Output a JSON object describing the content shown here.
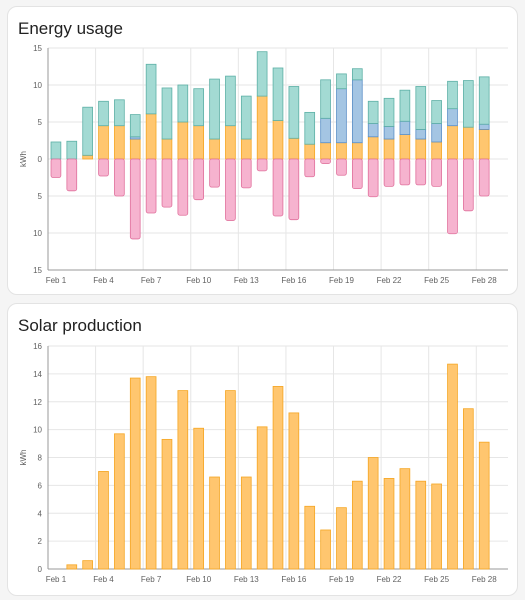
{
  "cards": [
    {
      "title": "Energy usage"
    },
    {
      "title": "Solar production"
    }
  ],
  "colors": {
    "solar": "#ffc66f",
    "solar_stroke": "#f5a623",
    "grid_in": "#a3dad3",
    "grid_in_stroke": "#5db0a6",
    "battery": "#a4c5e3",
    "battery_stroke": "#5b8fc7",
    "grid_out": "#f6b3cf",
    "grid_out_stroke": "#e0709c",
    "gridline": "#e6e6e6",
    "axis": "#999999"
  },
  "chart_data": [
    {
      "type": "bar",
      "stacked": true,
      "categories": [
        "Feb 1",
        "Feb 2",
        "Feb 3",
        "Feb 4",
        "Feb 5",
        "Feb 6",
        "Feb 7",
        "Feb 8",
        "Feb 9",
        "Feb 10",
        "Feb 11",
        "Feb 12",
        "Feb 13",
        "Feb 14",
        "Feb 15",
        "Feb 16",
        "Feb 17",
        "Feb 18",
        "Feb 19",
        "Feb 20",
        "Feb 21",
        "Feb 22",
        "Feb 23",
        "Feb 24",
        "Feb 25",
        "Feb 26",
        "Feb 27",
        "Feb 28",
        "Feb 29"
      ],
      "x_tick_labels": [
        "Feb 1",
        "Feb 4",
        "Feb 7",
        "Feb 10",
        "Feb 13",
        "Feb 16",
        "Feb 19",
        "Feb 22",
        "Feb 25",
        "Feb 28"
      ],
      "ylabel": "kWh",
      "ylim": [
        -15,
        15
      ],
      "y_ticks": [
        15,
        10,
        5,
        0,
        5,
        10,
        15
      ],
      "grid": true,
      "series": [
        {
          "key": "solar",
          "values": [
            0,
            0,
            0.5,
            4.5,
            4.5,
            2.7,
            6.1,
            2.7,
            5.0,
            4.5,
            2.7,
            4.5,
            2.7,
            8.5,
            5.2,
            2.8,
            2.0,
            2.2,
            2.2,
            2.2,
            3.0,
            2.7,
            3.3,
            2.7,
            2.3,
            4.5,
            4.3,
            4.0,
            0
          ]
        },
        {
          "key": "battery",
          "values": [
            0,
            0,
            0,
            0,
            0,
            0.3,
            0,
            0,
            0,
            0,
            0,
            0,
            0,
            0,
            0,
            0,
            0,
            3.3,
            7.3,
            8.5,
            1.8,
            1.7,
            1.8,
            1.3,
            2.5,
            2.3,
            0,
            0.7,
            0
          ]
        },
        {
          "key": "grid_in",
          "values": [
            2.3,
            2.4,
            6.5,
            3.3,
            3.5,
            3.0,
            6.7,
            6.9,
            5.0,
            5.0,
            8.1,
            6.7,
            5.8,
            6.0,
            7.1,
            7.0,
            4.3,
            5.2,
            2.0,
            1.5,
            3.0,
            3.8,
            4.2,
            5.8,
            3.1,
            3.7,
            6.3,
            6.4,
            0
          ]
        },
        {
          "key": "grid_out",
          "values": [
            -2.5,
            -4.3,
            0,
            -2.3,
            -5.0,
            -10.8,
            -7.3,
            -6.5,
            -7.6,
            -5.5,
            -3.8,
            -8.3,
            -3.9,
            -1.6,
            -7.7,
            -8.2,
            -2.4,
            -0.6,
            -2.2,
            -4.0,
            -5.1,
            -3.7,
            -3.5,
            -3.5,
            -3.7,
            -10.1,
            -7.0,
            -5.0,
            0
          ]
        }
      ]
    },
    {
      "type": "bar",
      "categories": [
        "Feb 1",
        "Feb 2",
        "Feb 3",
        "Feb 4",
        "Feb 5",
        "Feb 6",
        "Feb 7",
        "Feb 8",
        "Feb 9",
        "Feb 10",
        "Feb 11",
        "Feb 12",
        "Feb 13",
        "Feb 14",
        "Feb 15",
        "Feb 16",
        "Feb 17",
        "Feb 18",
        "Feb 19",
        "Feb 20",
        "Feb 21",
        "Feb 22",
        "Feb 23",
        "Feb 24",
        "Feb 25",
        "Feb 26",
        "Feb 27",
        "Feb 28",
        "Feb 29"
      ],
      "x_tick_labels": [
        "Feb 1",
        "Feb 4",
        "Feb 7",
        "Feb 10",
        "Feb 13",
        "Feb 16",
        "Feb 19",
        "Feb 22",
        "Feb 25",
        "Feb 28"
      ],
      "ylabel": "kWh",
      "ylim": [
        0,
        16
      ],
      "y_ticks": [
        16,
        14,
        12,
        10,
        8,
        6,
        4,
        2,
        0
      ],
      "grid": true,
      "values": [
        0,
        0.3,
        0.6,
        7.0,
        9.7,
        13.7,
        13.8,
        9.3,
        12.8,
        10.1,
        6.6,
        12.8,
        6.6,
        10.2,
        13.1,
        11.2,
        4.5,
        2.8,
        4.4,
        6.3,
        8.0,
        6.5,
        7.2,
        6.3,
        6.1,
        14.7,
        11.5,
        9.1,
        0
      ]
    }
  ]
}
